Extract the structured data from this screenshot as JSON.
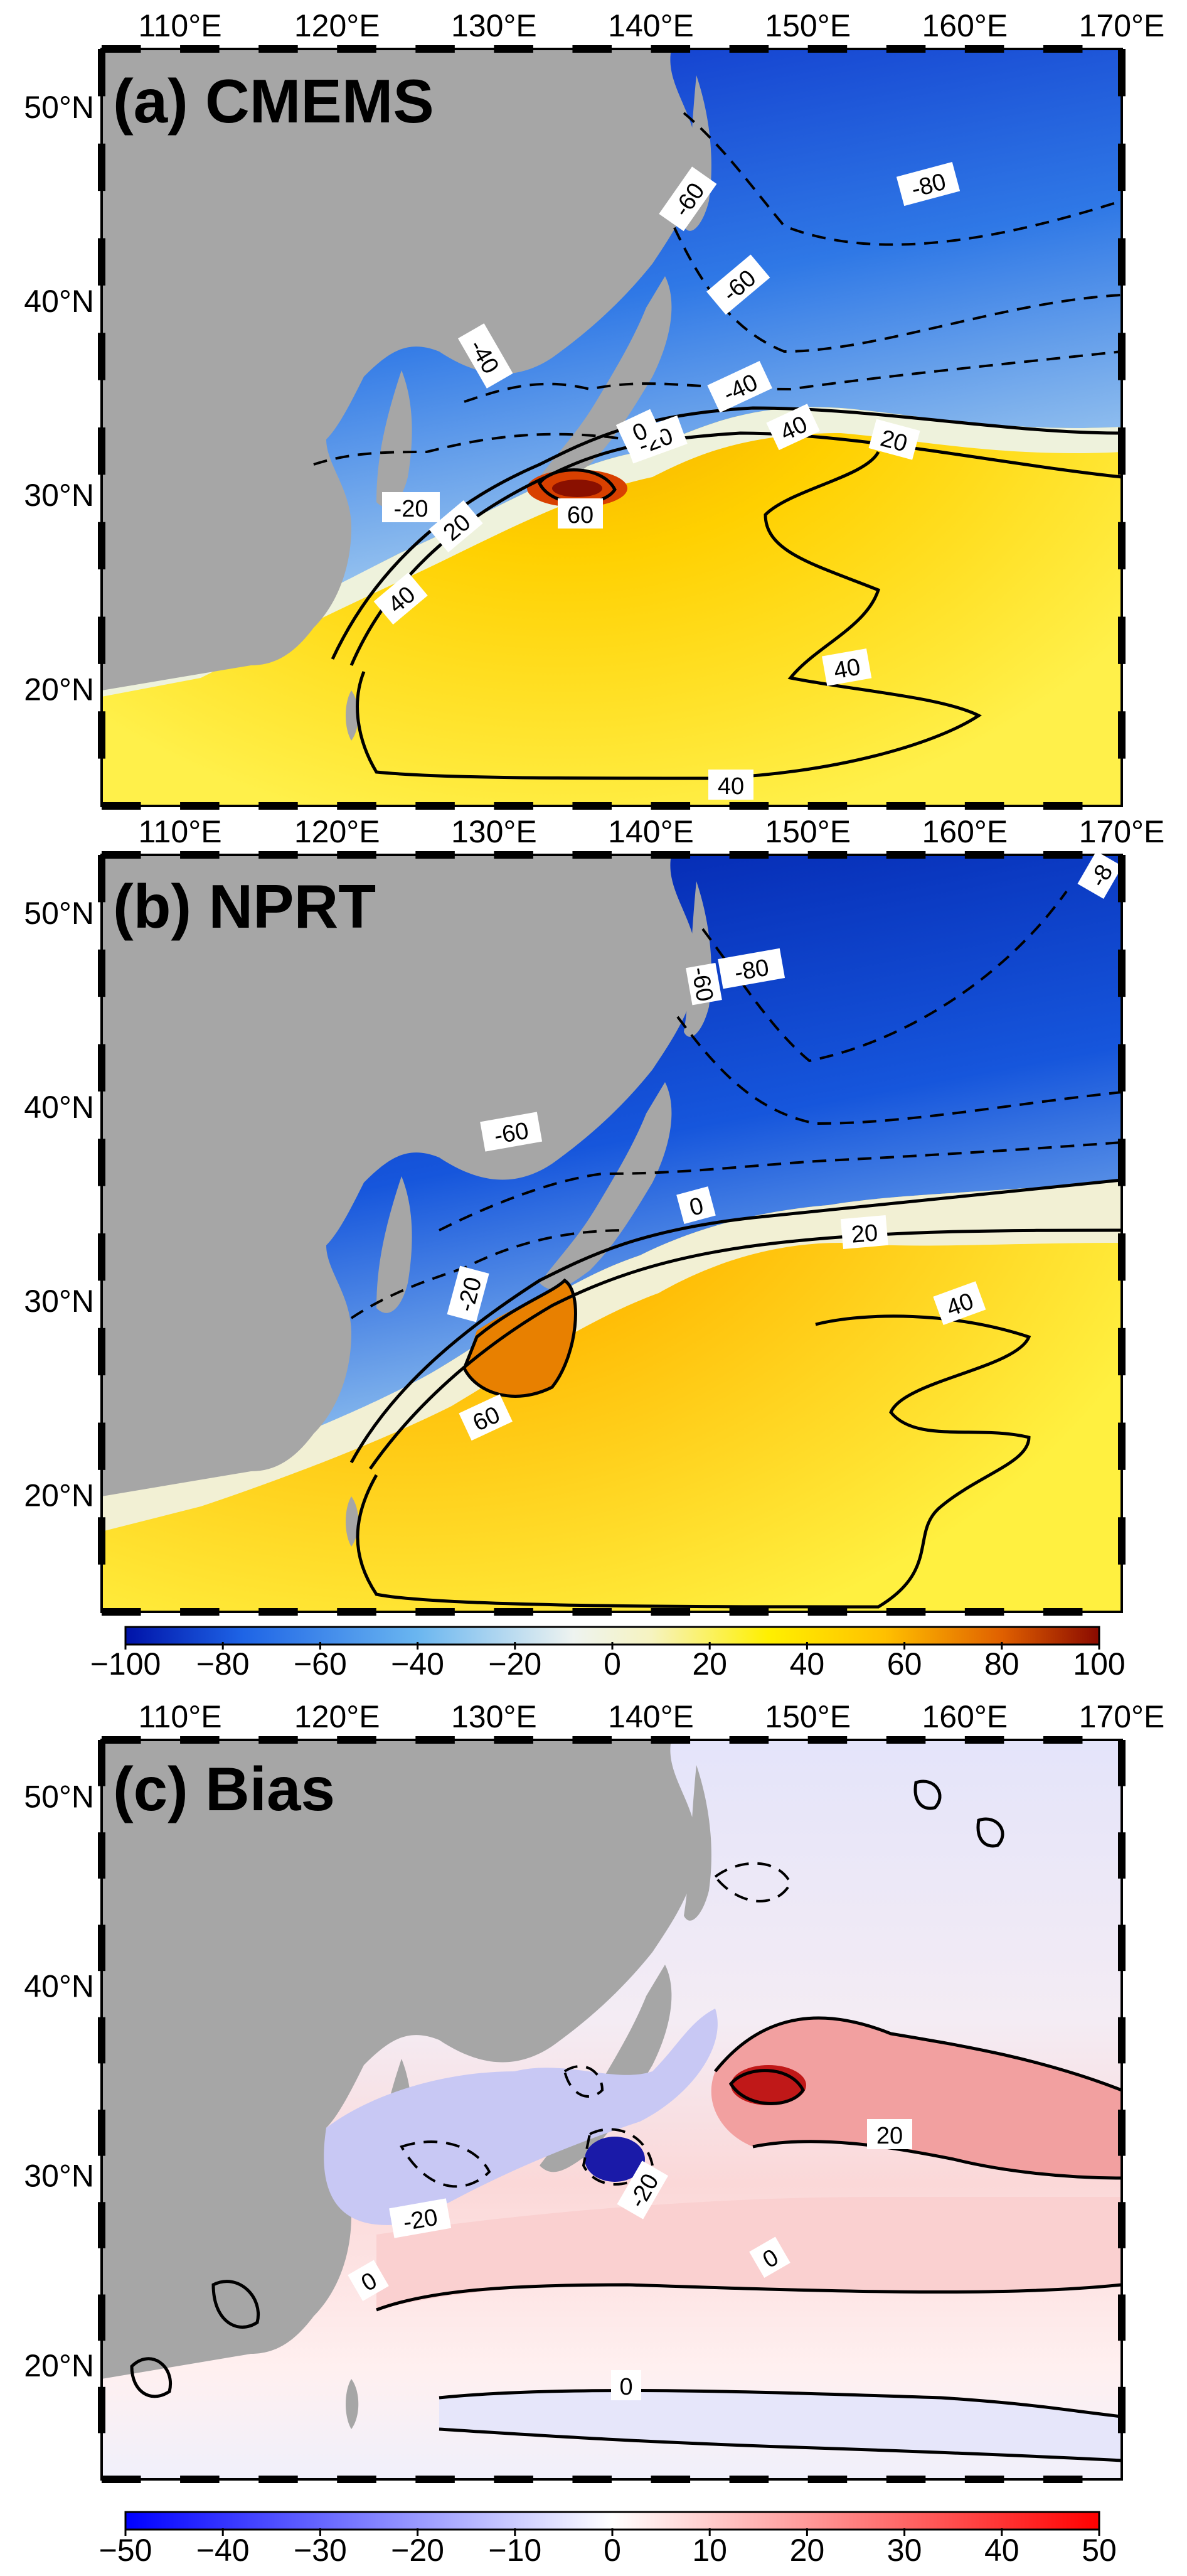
{
  "axes": {
    "lon_labels": [
      "110°E",
      "120°E",
      "130°E",
      "140°E",
      "150°E",
      "160°E",
      "170°E"
    ],
    "lat_labels": [
      "50°N",
      "40°N",
      "30°N",
      "20°N"
    ],
    "lon_range": [
      105,
      170
    ],
    "lat_range": [
      14,
      53
    ]
  },
  "panels": [
    {
      "title": "(a) CMEMS",
      "colormap": "blue-white-yellow-red",
      "contour_labels": [
        "-80",
        "-60",
        "-60",
        "-40",
        "-40",
        "-20",
        "-20",
        "0",
        "20",
        "20",
        "40",
        "40",
        "40",
        "40",
        "60"
      ]
    },
    {
      "title": "(b) NPRT",
      "colormap": "blue-white-yellow-red",
      "contour_labels": [
        "-8",
        "-80",
        "-60",
        "-60",
        "0",
        "20",
        "-20",
        "40",
        "60"
      ]
    },
    {
      "title": "(c) Bias",
      "colormap": "blue-white-red",
      "contour_labels": [
        "20",
        "0",
        "-20",
        "-20",
        "0",
        "0"
      ]
    }
  ],
  "colorbars": [
    {
      "ticks": [
        "-100",
        "-80",
        "-60",
        "-40",
        "-20",
        "0",
        "20",
        "40",
        "60",
        "80",
        "100"
      ],
      "range": [
        -100,
        100
      ],
      "colors": [
        "#0012a8",
        "#1e64e6",
        "#6ab6f0",
        "#eef3e6",
        "#fff08a",
        "#ffd400",
        "#f08a00",
        "#d24a00",
        "#8a0a00"
      ]
    },
    {
      "ticks": [
        "-50",
        "-40",
        "-30",
        "-20",
        "-10",
        "0",
        "10",
        "20",
        "30",
        "40",
        "50"
      ],
      "range": [
        -50,
        50
      ],
      "colors": [
        "#0000ff",
        "#8c8cf0",
        "#ffffff",
        "#f08c8c",
        "#ff0000"
      ]
    }
  ],
  "colors": {
    "land": "#a6a6a6",
    "frame": "#000000",
    "ocean_warm": "#ffcc00",
    "ocean_cold": "#1e5ae0",
    "bias_pos": "#e63c3c",
    "bias_neg": "#6464e6"
  }
}
